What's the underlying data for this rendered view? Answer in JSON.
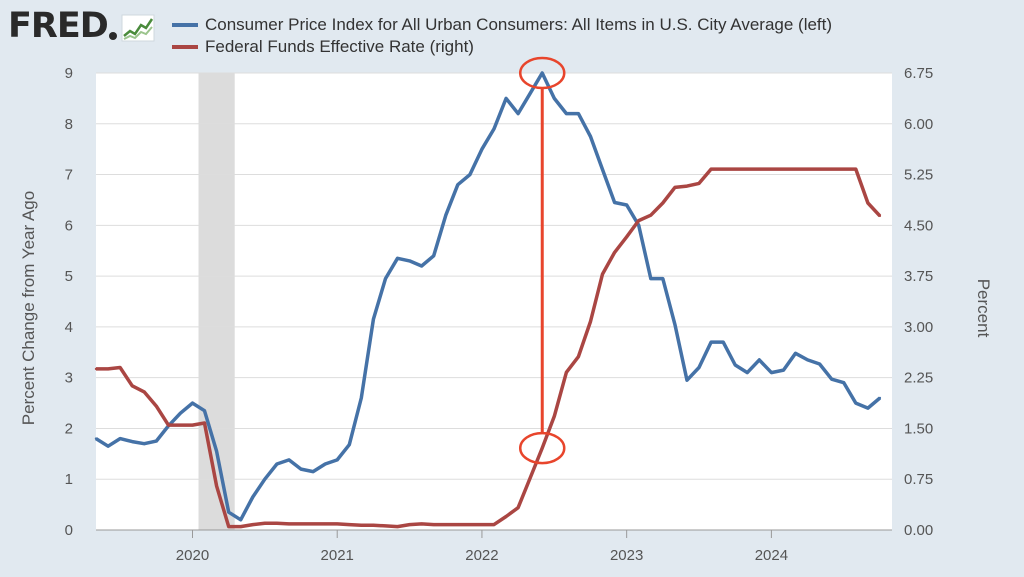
{
  "logo": {
    "text": "FRED"
  },
  "colors": {
    "cpi": "#4572a7",
    "fedfunds": "#aa4643",
    "annotation": "#e8452c",
    "recession": "#dcdcdc",
    "grid": "#dddddd",
    "background": "#e1e9f0",
    "plot_background": "#ffffff"
  },
  "chart_data": {
    "type": "line",
    "legend": [
      {
        "name": "Consumer Price Index for All Urban Consumers: All Items in U.S. City Average (left)",
        "color": "#4572a7"
      },
      {
        "name": "Federal Funds Effective Rate (right)",
        "color": "#aa4643"
      }
    ],
    "left_axis": {
      "label": "Percent Change from Year Ago",
      "ylim": [
        0,
        9
      ],
      "ticks": [
        "0",
        "1",
        "2",
        "3",
        "4",
        "5",
        "6",
        "7",
        "8",
        "9"
      ]
    },
    "right_axis": {
      "label": "Percent",
      "ylim": [
        0,
        6.75
      ],
      "ticks": [
        "0.00",
        "0.75",
        "1.50",
        "2.25",
        "3.00",
        "3.75",
        "4.50",
        "5.25",
        "6.00",
        "6.75"
      ]
    },
    "x_axis": {
      "ticks": [
        "2020",
        "2021",
        "2022",
        "2023",
        "2024"
      ],
      "xlim": [
        "2019-05",
        "2024-11"
      ]
    },
    "grid": true,
    "recession": {
      "start": "2020-02",
      "end": "2020-04"
    },
    "series": [
      {
        "name": "Consumer Price Index for All Urban Consumers: All Items in U.S. City Average",
        "axis": "left",
        "start": "2019-05",
        "values": [
          1.8,
          1.65,
          1.8,
          1.74,
          1.7,
          1.75,
          2.05,
          2.3,
          2.5,
          2.35,
          1.55,
          0.35,
          0.2,
          0.65,
          1.0,
          1.3,
          1.38,
          1.2,
          1.15,
          1.3,
          1.38,
          1.68,
          2.6,
          4.15,
          4.95,
          5.35,
          5.3,
          5.2,
          5.4,
          6.2,
          6.8,
          7.0,
          7.5,
          7.9,
          8.5,
          8.2,
          8.6,
          9.0,
          8.5,
          8.2,
          8.2,
          7.75,
          7.1,
          6.45,
          6.4,
          6.0,
          4.95,
          4.95,
          4.05,
          2.95,
          3.2,
          3.7,
          3.7,
          3.25,
          3.1,
          3.35,
          3.1,
          3.15,
          3.48,
          3.35,
          3.27,
          2.97,
          2.9,
          2.5,
          2.4,
          2.6
        ]
      },
      {
        "name": "Federal Funds Effective Rate",
        "axis": "right",
        "start": "2019-05",
        "values": [
          2.38,
          2.38,
          2.4,
          2.13,
          2.04,
          1.83,
          1.55,
          1.55,
          1.55,
          1.58,
          0.65,
          0.05,
          0.05,
          0.08,
          0.1,
          0.1,
          0.09,
          0.09,
          0.09,
          0.09,
          0.09,
          0.08,
          0.07,
          0.07,
          0.06,
          0.05,
          0.08,
          0.09,
          0.08,
          0.08,
          0.08,
          0.08,
          0.08,
          0.08,
          0.2,
          0.33,
          0.77,
          1.21,
          1.68,
          2.33,
          2.56,
          3.08,
          3.78,
          4.1,
          4.33,
          4.57,
          4.65,
          4.83,
          5.06,
          5.08,
          5.12,
          5.33,
          5.33,
          5.33,
          5.33,
          5.33,
          5.33,
          5.33,
          5.33,
          5.33,
          5.33,
          5.33,
          5.33,
          5.33,
          4.83,
          4.64
        ]
      }
    ],
    "annotations": [
      {
        "type": "circle",
        "series": 0,
        "at": "2022-06"
      },
      {
        "type": "circle",
        "series": 1,
        "at": "2022-06"
      }
    ]
  }
}
